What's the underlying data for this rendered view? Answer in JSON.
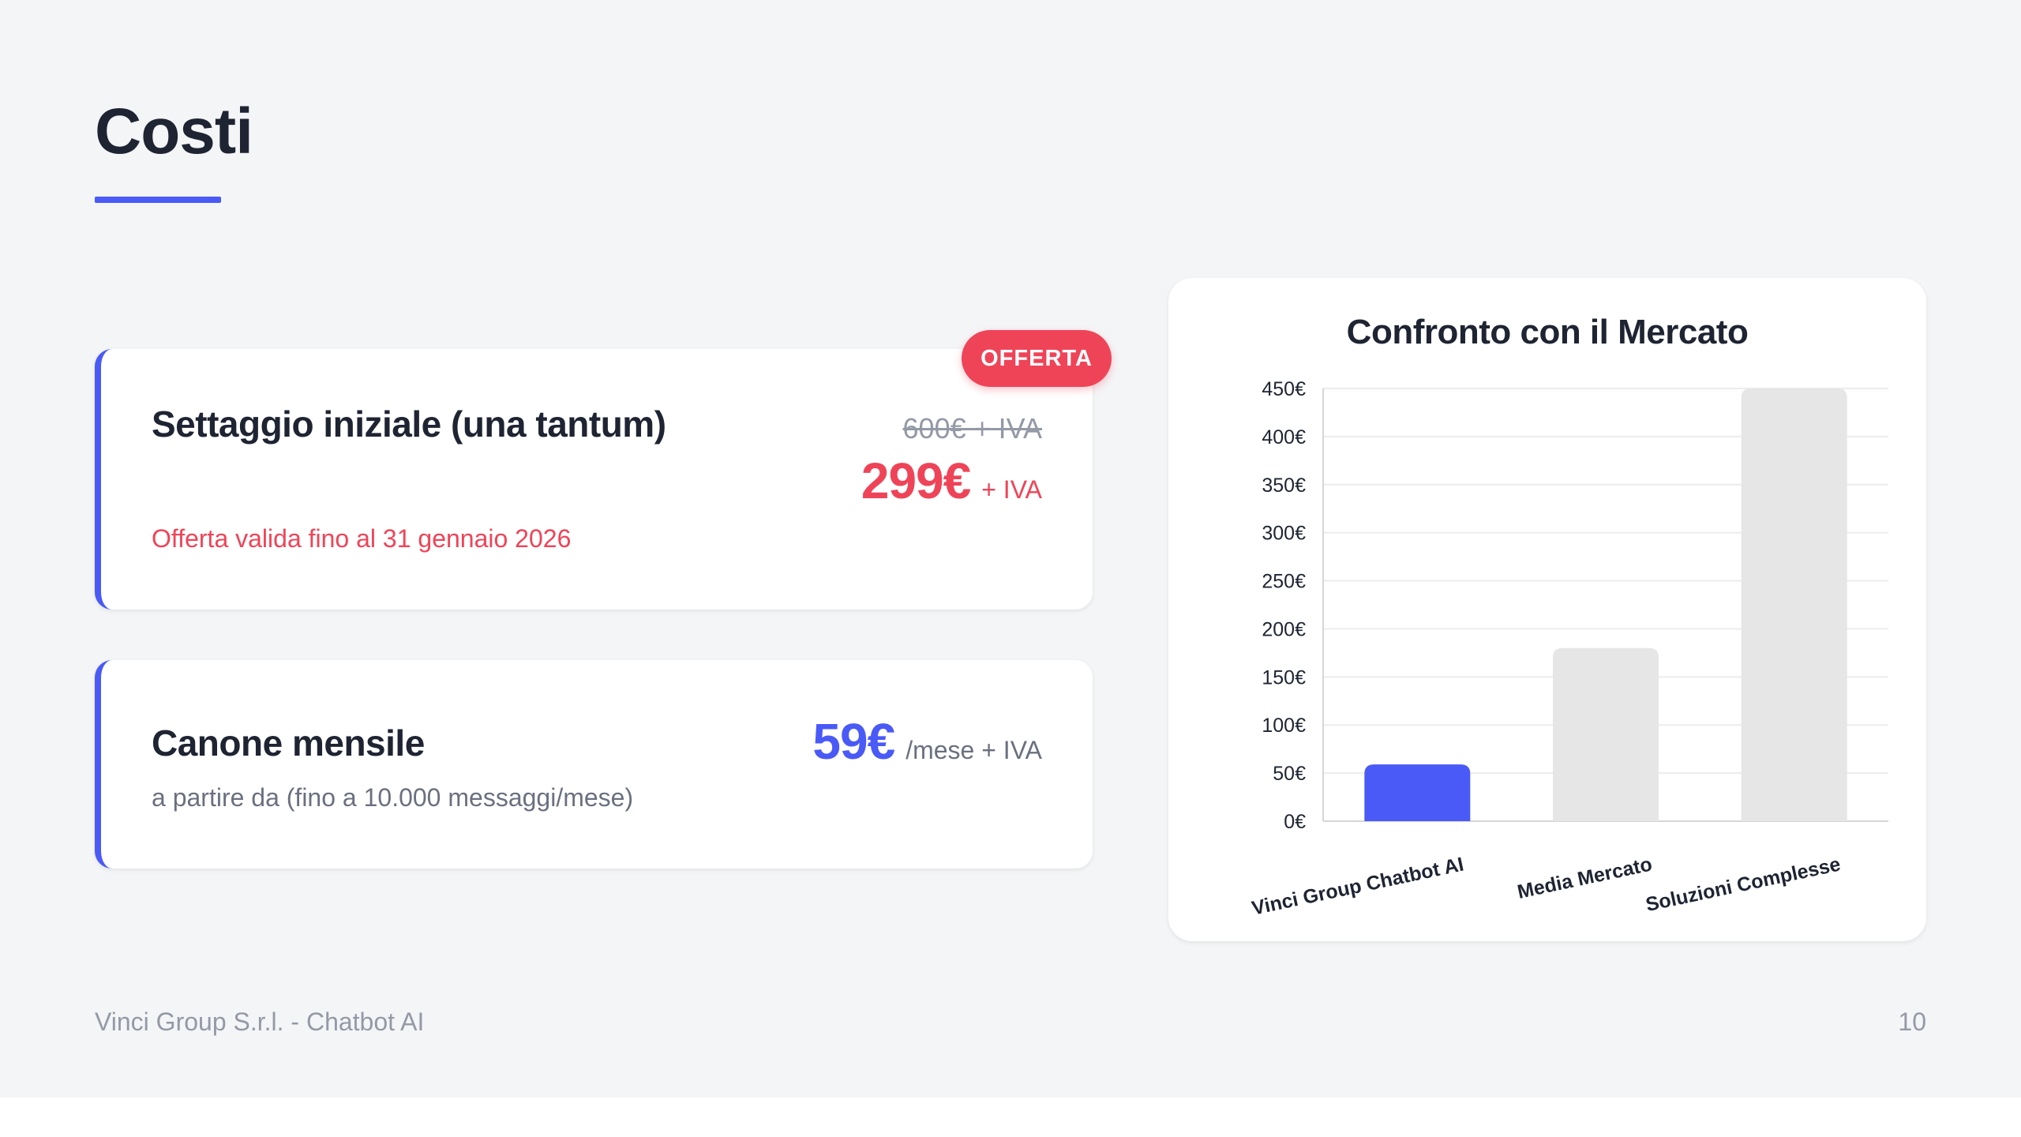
{
  "slide": {
    "title": "Costi",
    "footer_left": "Vinci Group S.r.l. - Chatbot AI",
    "page_number": "10"
  },
  "setup_card": {
    "heading": "Settaggio iniziale (una tantum)",
    "badge": "OFFERTA",
    "old_price": "600€ + IVA",
    "price": "299€",
    "price_suffix": "+ IVA",
    "note": "Offerta valida fino al 31 gennaio 2026"
  },
  "monthly_card": {
    "heading": "Canone mensile",
    "subtext": "a partire da (fino a 10.000 messaggi/mese)",
    "price": "59€",
    "price_suffix": "/mese + IVA"
  },
  "colors": {
    "accent": "#4a5af7",
    "offer": "#ef4458",
    "bar_muted": "#e6e6e6"
  },
  "chart_data": {
    "type": "bar",
    "title": "Confronto con il Mercato",
    "categories": [
      "Vinci Group Chatbot AI",
      "Media Mercato",
      "Soluzioni Complesse"
    ],
    "values": [
      59,
      180,
      450
    ],
    "ylim": [
      0,
      450
    ],
    "yticks": [
      0,
      50,
      100,
      150,
      200,
      250,
      300,
      350,
      400,
      450
    ],
    "ytick_labels": [
      "0€",
      "50€",
      "100€",
      "150€",
      "200€",
      "250€",
      "300€",
      "350€",
      "400€",
      "450€"
    ],
    "xlabel": "",
    "ylabel": "",
    "grid": true,
    "legend": "none",
    "bar_colors": [
      "#4a5af7",
      "#e6e6e6",
      "#e6e6e6"
    ]
  }
}
